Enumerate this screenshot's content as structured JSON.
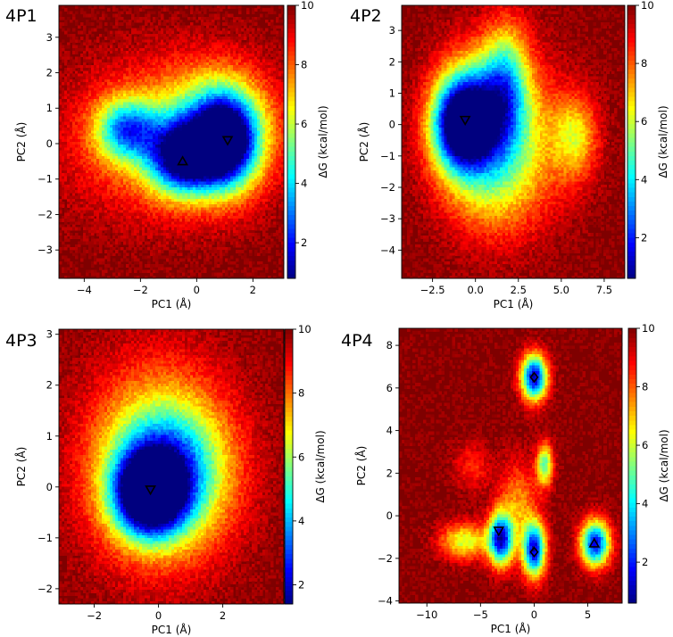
{
  "colorbar": {
    "label": "ΔG (kcal/mol)",
    "stops": [
      "#00007f",
      "#0000ff",
      "#007fff",
      "#00ffff",
      "#7fff7f",
      "#ffff00",
      "#ff7f00",
      "#ff0000",
      "#7f0000"
    ]
  },
  "chart_data": [
    {
      "type": "heatmap",
      "panel_label": "4P1",
      "xlabel": "PC1 (Å)",
      "ylabel": "PC2 (Å)",
      "xlim": [
        -4.9,
        3.1
      ],
      "ylim": [
        -3.8,
        3.9
      ],
      "xticks": [
        -4,
        -2,
        0,
        2
      ],
      "yticks": [
        -3,
        -2,
        -1,
        0,
        1,
        2,
        3
      ],
      "colorbar_range": [
        0.8,
        10
      ],
      "colorbar_ticks": [
        2,
        4,
        6,
        8,
        10
      ],
      "basins": [
        {
          "x": -2.5,
          "y": 0.4,
          "sx": 0.75,
          "sy": 0.6,
          "depth": 0.55
        },
        {
          "x": -0.5,
          "y": -0.4,
          "sx": 0.85,
          "sy": 0.7,
          "depth": 0.78
        },
        {
          "x": 1.05,
          "y": 0.05,
          "sx": 0.8,
          "sy": 0.9,
          "depth": 0.9
        },
        {
          "x": 0.6,
          "y": 0.6,
          "sx": 1.4,
          "sy": 1.1,
          "depth": 0.32
        },
        {
          "x": -1.2,
          "y": 0.1,
          "sx": 2.4,
          "sy": 1.5,
          "depth": 0.25
        }
      ],
      "markers": [
        {
          "x": -0.5,
          "y": -0.5,
          "symbol": "triangle-up"
        },
        {
          "x": 1.1,
          "y": 0.1,
          "symbol": "triangle-down"
        }
      ]
    },
    {
      "type": "heatmap",
      "panel_label": "4P2",
      "xlabel": "PC1 (Å)",
      "ylabel": "PC2 (Å)",
      "xlim": [
        -4.3,
        8.7
      ],
      "ylim": [
        -4.9,
        3.8
      ],
      "xticks": [
        -2.5,
        0.0,
        2.5,
        5.0,
        7.5
      ],
      "xtick_labels": [
        "−2.5",
        "0.0",
        "2.5",
        "5.0",
        "7.5"
      ],
      "yticks": [
        -4,
        -3,
        -2,
        -1,
        0,
        1,
        2,
        3
      ],
      "colorbar_range": [
        0.6,
        10
      ],
      "colorbar_ticks": [
        2,
        4,
        6,
        8,
        10
      ],
      "basins": [
        {
          "x": -0.8,
          "y": 0.0,
          "sx": 1.2,
          "sy": 1.0,
          "depth": 0.92
        },
        {
          "x": 0.5,
          "y": 0.6,
          "sx": 1.7,
          "sy": 1.3,
          "depth": 0.45
        },
        {
          "x": 1.8,
          "y": 1.5,
          "sx": 0.9,
          "sy": 1.3,
          "depth": 0.35
        },
        {
          "x": 0.8,
          "y": -1.6,
          "sx": 2.0,
          "sy": 1.4,
          "depth": 0.28
        },
        {
          "x": 5.8,
          "y": -0.4,
          "sx": 0.9,
          "sy": 0.9,
          "depth": 0.3
        },
        {
          "x": 2.5,
          "y": -0.5,
          "sx": 2.4,
          "sy": 1.8,
          "depth": 0.2
        }
      ],
      "markers": [
        {
          "x": -0.6,
          "y": 0.15,
          "symbol": "triangle-down"
        }
      ]
    },
    {
      "type": "heatmap",
      "panel_label": "4P3",
      "xlabel": "PC1 (Å)",
      "ylabel": "PC2 (Å)",
      "xlim": [
        -3.1,
        3.9
      ],
      "ylim": [
        -2.3,
        3.1
      ],
      "xticks": [
        -2,
        0,
        2
      ],
      "yticks": [
        -2,
        -1,
        0,
        1,
        2,
        3
      ],
      "colorbar_range": [
        1.4,
        10
      ],
      "colorbar_ticks": [
        2,
        4,
        6,
        8,
        10
      ],
      "basins": [
        {
          "x": -0.3,
          "y": -0.15,
          "sx": 0.75,
          "sy": 0.55,
          "depth": 0.92
        },
        {
          "x": 0.3,
          "y": 0.3,
          "sx": 1.2,
          "sy": 0.9,
          "depth": 0.55
        },
        {
          "x": 0.0,
          "y": 0.5,
          "sx": 1.6,
          "sy": 1.4,
          "depth": 0.32
        }
      ],
      "markers": [
        {
          "x": -0.25,
          "y": -0.05,
          "symbol": "triangle-down"
        }
      ]
    },
    {
      "type": "heatmap",
      "panel_label": "4P4",
      "xlabel": "PC1 (Å)",
      "ylabel": "PC2 (Å)",
      "xlim": [
        -12.6,
        8.2
      ],
      "ylim": [
        -4.1,
        8.8
      ],
      "xticks": [
        -10,
        -5,
        0,
        5
      ],
      "yticks": [
        -4,
        -2,
        0,
        2,
        4,
        6,
        8
      ],
      "colorbar_range": [
        0.6,
        10
      ],
      "colorbar_ticks": [
        2,
        4,
        6,
        8,
        10
      ],
      "basins": [
        {
          "x": 0.0,
          "y": 6.5,
          "sx": 0.85,
          "sy": 0.75,
          "depth": 0.9
        },
        {
          "x": -3.1,
          "y": -1.1,
          "sx": 0.8,
          "sy": 0.85,
          "depth": 0.85
        },
        {
          "x": 0.0,
          "y": -1.6,
          "sx": 0.75,
          "sy": 0.9,
          "depth": 0.85
        },
        {
          "x": 5.7,
          "y": -1.3,
          "sx": 0.95,
          "sy": 0.75,
          "depth": 0.85
        },
        {
          "x": 1.0,
          "y": 2.4,
          "sx": 0.55,
          "sy": 0.7,
          "depth": 0.5
        },
        {
          "x": -6.5,
          "y": -1.2,
          "sx": 1.6,
          "sy": 0.6,
          "depth": 0.4
        },
        {
          "x": -1.5,
          "y": 0.6,
          "sx": 1.3,
          "sy": 1.4,
          "depth": 0.25
        },
        {
          "x": -5.8,
          "y": 2.3,
          "sx": 1.2,
          "sy": 0.8,
          "depth": 0.15
        }
      ],
      "markers": [
        {
          "x": 0.0,
          "y": 6.5,
          "symbol": "diamond"
        },
        {
          "x": -3.3,
          "y": -0.7,
          "symbol": "triangle-down"
        },
        {
          "x": 0.0,
          "y": -1.7,
          "symbol": "diamond"
        },
        {
          "x": 5.6,
          "y": -1.3,
          "symbol": "triangle-up"
        }
      ]
    }
  ]
}
